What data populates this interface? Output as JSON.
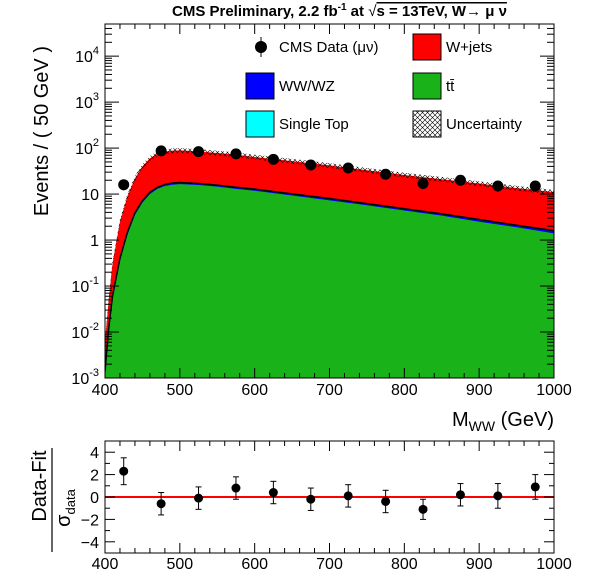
{
  "figure": {
    "title": "CMS Preliminary, 2.2 fb",
    "title_sup": "-1",
    "title_at": " at ",
    "title_sqrt": "√",
    "title_energy": "s = 13TeV, W→ μ ν"
  },
  "chart_data": [
    {
      "type": "area",
      "xlabel": "M",
      "xlabel_sub": "WW",
      "xlabel_unit": " (GeV)",
      "ylabel": "Events / ( 50 GeV )",
      "xlim": [
        400,
        1000
      ],
      "ylim": [
        0.001,
        50000
      ],
      "log_y": true,
      "x_ticks": [
        "400",
        "500",
        "600",
        "700",
        "800",
        "900",
        "1000"
      ],
      "y_ticks": [
        {
          "base": "10",
          "exp": "-3",
          "value": 0.001
        },
        {
          "base": "10",
          "exp": "-2",
          "value": 0.01
        },
        {
          "base": "10",
          "exp": "-1",
          "value": 0.1
        },
        {
          "base": "1",
          "exp": "",
          "value": 1
        },
        {
          "base": "10",
          "exp": "",
          "value": 10
        },
        {
          "base": "10",
          "exp": "2",
          "value": 100
        },
        {
          "base": "10",
          "exp": "3",
          "value": 1000
        },
        {
          "base": "10",
          "exp": "4",
          "value": 10000
        }
      ],
      "stack": {
        "x": [
          400,
          405,
          410,
          420,
          430,
          440,
          450,
          460,
          470,
          480,
          490,
          500,
          525,
          550,
          575,
          600,
          650,
          700,
          750,
          800,
          850,
          900,
          950,
          1000
        ],
        "total": [
          0.006,
          0.05,
          0.3,
          2.5,
          9,
          22,
          40,
          60,
          75,
          84,
          88,
          89,
          85,
          78,
          72,
          64,
          52,
          42,
          33,
          26,
          21,
          17,
          13.5,
          11
        ],
        "ttbar": [
          0.0012,
          0.01,
          0.05,
          0.35,
          1.3,
          3.5,
          6.5,
          10,
          13,
          15,
          16,
          16.5,
          15.8,
          14.5,
          13,
          11.8,
          9.3,
          7.3,
          5.7,
          4.4,
          3.4,
          2.5,
          1.9,
          1.4
        ],
        "wwwz": [
          0.0014,
          0.012,
          0.06,
          0.4,
          1.5,
          3.9,
          7.2,
          11,
          14,
          16.2,
          17.4,
          17.8,
          17,
          15.7,
          14.1,
          12.8,
          10.1,
          8,
          6.2,
          4.8,
          3.7,
          2.8,
          2.1,
          1.6
        ],
        "uncertainty_rel": 0.12
      },
      "data": {
        "label": "CMS Data (μν)",
        "x": [
          425,
          475,
          525,
          575,
          625,
          675,
          725,
          775,
          825,
          875,
          925,
          975
        ],
        "y": [
          16,
          87,
          84,
          75,
          57,
          43,
          37,
          27,
          17,
          20,
          15,
          15
        ]
      },
      "legend": [
        {
          "key": "data",
          "label": "CMS Data (μν)"
        },
        {
          "key": "wjets",
          "label": "W+jets",
          "color": "#ff0000"
        },
        {
          "key": "wwwz",
          "label": "WW/WZ",
          "color": "#0000ff"
        },
        {
          "key": "ttbar",
          "label": "tt̄",
          "color": "#19b319"
        },
        {
          "key": "singletop",
          "label": "Single Top",
          "color": "#00ffff"
        },
        {
          "key": "unc",
          "label": "Uncertainty"
        }
      ],
      "legend_position": "top-right",
      "colors": {
        "wjets": "#ff0000",
        "ttbar": "#19b319",
        "wwwz": "#0000ff",
        "singletop": "#00ffff",
        "data": "#000000"
      }
    },
    {
      "type": "scatter",
      "ylabel": "Data-Fit",
      "ylabel_denom": "σ",
      "ylabel_denom_sub": "data",
      "xlim": [
        400,
        1000
      ],
      "ylim": [
        -5,
        5
      ],
      "x_ticks": [
        "400",
        "500",
        "600",
        "700",
        "800",
        "900",
        "1000"
      ],
      "y_ticks": [
        {
          "label": "4",
          "value": 4
        },
        {
          "label": "2",
          "value": 2
        },
        {
          "label": "0",
          "value": 0
        },
        {
          "label": "−2",
          "value": -2
        },
        {
          "label": "−4",
          "value": -4
        }
      ],
      "x": [
        425,
        475,
        525,
        575,
        625,
        675,
        725,
        775,
        825,
        875,
        925,
        975
      ],
      "y": [
        2.3,
        -0.6,
        -0.1,
        0.8,
        0.4,
        -0.2,
        0.1,
        -0.4,
        -1.1,
        0.2,
        0.1,
        0.9
      ],
      "yerr": [
        1.2,
        1.0,
        1.0,
        1.0,
        1.0,
        1.0,
        1.0,
        1.0,
        0.9,
        1.0,
        1.1,
        1.1
      ],
      "reference_line": 0,
      "reference_color": "#ff0000"
    }
  ]
}
